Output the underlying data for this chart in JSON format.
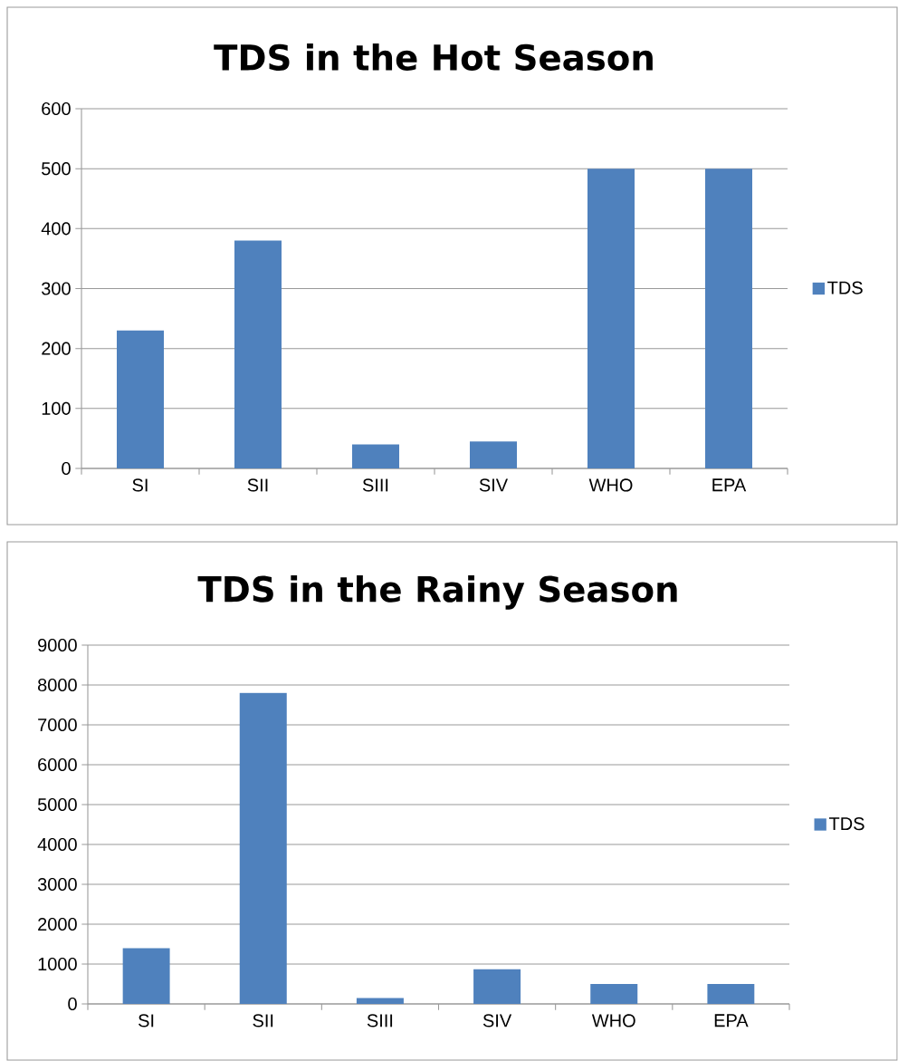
{
  "chart_data": [
    {
      "type": "bar",
      "title": "TDS in the Hot Season",
      "categories": [
        "SI",
        "SII",
        "SIII",
        "SIV",
        "WHO",
        "EPA"
      ],
      "series": [
        {
          "name": "TDS",
          "color": "#4f81bd",
          "values": [
            230,
            380,
            40,
            45,
            500,
            500
          ]
        }
      ],
      "ylim": [
        0,
        600
      ],
      "yticks": [
        0,
        100,
        200,
        300,
        400,
        500,
        600
      ],
      "grid": "y",
      "legend": "right"
    },
    {
      "type": "bar",
      "title": "TDS in the Rainy Season",
      "categories": [
        "SI",
        "SII",
        "SIII",
        "SIV",
        "WHO",
        "EPA"
      ],
      "series": [
        {
          "name": "TDS",
          "color": "#4f81bd",
          "values": [
            1400,
            7800,
            150,
            870,
            500,
            500
          ]
        }
      ],
      "ylim": [
        0,
        9000
      ],
      "yticks": [
        0,
        1000,
        2000,
        3000,
        4000,
        5000,
        6000,
        7000,
        8000,
        9000
      ],
      "grid": "y",
      "legend": "right"
    }
  ]
}
